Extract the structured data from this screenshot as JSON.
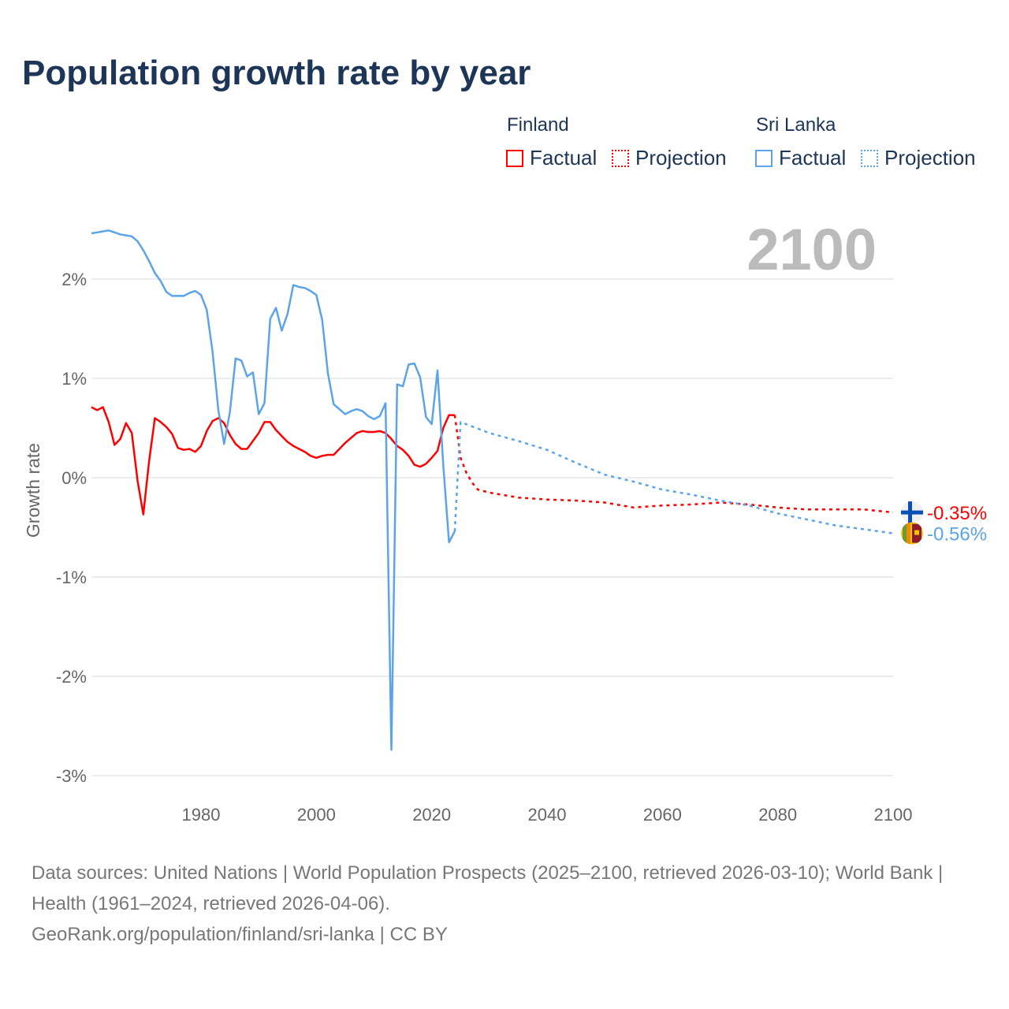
{
  "title": "Population growth rate by year",
  "legend": {
    "groups": [
      {
        "name": "Finland",
        "color": "#ff0000",
        "factual": "Factual",
        "projection": "Projection"
      },
      {
        "name": "Sri Lanka",
        "color": "#5ba4ea",
        "factual": "Factual",
        "projection": "Projection"
      }
    ]
  },
  "current_year_label": "2100",
  "footer": {
    "sources": "Data sources: United Nations | World Population Prospects (2025–2100, retrieved 2026-03-10); World Bank | Health (1961–2024, retrieved 2026-04-06).",
    "credit": "GeoRank.org/population/finland/sri-lanka | CC BY"
  },
  "chart_data": {
    "type": "line",
    "title": "Population growth rate by year",
    "xlabel": "",
    "ylabel": "Growth rate",
    "xlim": [
      1961,
      2100
    ],
    "ylim": [
      -3.3,
      2.6
    ],
    "xticks": [
      1980,
      2000,
      2020,
      2040,
      2060,
      2080,
      2100
    ],
    "yticks": [
      2,
      1,
      0,
      -1,
      -2,
      -3
    ],
    "ytick_labels": [
      "2%",
      "1%",
      "0%",
      "-1%",
      "-2%",
      "-3%"
    ],
    "grid": true,
    "legend_position": "top-right",
    "series": [
      {
        "name": "Finland",
        "kind": "factual",
        "color": "#ff0000",
        "x": [
          1961,
          1962,
          1963,
          1964,
          1965,
          1966,
          1967,
          1968,
          1969,
          1970,
          1971,
          1972,
          1973,
          1974,
          1975,
          1976,
          1977,
          1978,
          1979,
          1980,
          1981,
          1982,
          1983,
          1984,
          1985,
          1986,
          1987,
          1988,
          1989,
          1990,
          1991,
          1992,
          1993,
          1994,
          1995,
          1996,
          1997,
          1998,
          1999,
          2000,
          2001,
          2002,
          2003,
          2004,
          2005,
          2006,
          2007,
          2008,
          2009,
          2010,
          2011,
          2012,
          2013,
          2014,
          2015,
          2016,
          2017,
          2018,
          2019,
          2020,
          2021,
          2022,
          2023,
          2024
        ],
        "y": [
          0.71,
          0.68,
          0.71,
          0.56,
          0.33,
          0.39,
          0.55,
          0.45,
          -0.03,
          -0.37,
          0.17,
          0.6,
          0.56,
          0.51,
          0.44,
          0.3,
          0.28,
          0.29,
          0.26,
          0.32,
          0.47,
          0.57,
          0.6,
          0.55,
          0.43,
          0.34,
          0.29,
          0.29,
          0.37,
          0.45,
          0.56,
          0.56,
          0.48,
          0.42,
          0.36,
          0.32,
          0.29,
          0.26,
          0.22,
          0.2,
          0.22,
          0.23,
          0.23,
          0.29,
          0.35,
          0.4,
          0.45,
          0.47,
          0.46,
          0.46,
          0.47,
          0.45,
          0.39,
          0.32,
          0.28,
          0.22,
          0.13,
          0.11,
          0.14,
          0.2,
          0.27,
          0.5,
          0.63,
          0.63
        ]
      },
      {
        "name": "Finland",
        "kind": "projection",
        "color": "#ff0000",
        "x": [
          2024,
          2025,
          2026,
          2027,
          2028,
          2030,
          2035,
          2040,
          2045,
          2050,
          2055,
          2060,
          2065,
          2070,
          2075,
          2080,
          2085,
          2090,
          2095,
          2100
        ],
        "y": [
          0.63,
          0.2,
          0.05,
          -0.05,
          -0.12,
          -0.15,
          -0.2,
          -0.22,
          -0.23,
          -0.25,
          -0.3,
          -0.28,
          -0.27,
          -0.25,
          -0.27,
          -0.3,
          -0.32,
          -0.32,
          -0.32,
          -0.35
        ]
      },
      {
        "name": "Sri Lanka",
        "kind": "factual",
        "color": "#5ba4ea",
        "x": [
          1961,
          1962,
          1963,
          1964,
          1965,
          1966,
          1967,
          1968,
          1969,
          1970,
          1971,
          1972,
          1973,
          1974,
          1975,
          1976,
          1977,
          1978,
          1979,
          1980,
          1981,
          1982,
          1983,
          1984,
          1985,
          1986,
          1987,
          1988,
          1989,
          1990,
          1991,
          1992,
          1993,
          1994,
          1995,
          1996,
          1997,
          1998,
          1999,
          2000,
          2001,
          2002,
          2003,
          2004,
          2005,
          2006,
          2007,
          2008,
          2009,
          2010,
          2011,
          2012,
          2013,
          2014,
          2015,
          2016,
          2017,
          2018,
          2019,
          2020,
          2021,
          2022,
          2023,
          2024
        ],
        "y": [
          2.46,
          2.47,
          2.48,
          2.49,
          2.47,
          2.45,
          2.44,
          2.43,
          2.38,
          2.29,
          2.18,
          2.06,
          1.98,
          1.87,
          1.83,
          1.83,
          1.83,
          1.86,
          1.88,
          1.84,
          1.69,
          1.27,
          0.68,
          0.34,
          0.66,
          1.2,
          1.18,
          1.02,
          1.06,
          0.64,
          0.75,
          1.6,
          1.71,
          1.48,
          1.65,
          1.94,
          1.92,
          1.91,
          1.88,
          1.84,
          1.59,
          1.05,
          0.74,
          0.69,
          0.64,
          0.67,
          0.69,
          0.67,
          0.62,
          0.59,
          0.62,
          0.75,
          -2.74,
          0.94,
          0.92,
          1.14,
          1.15,
          1.01,
          0.61,
          0.54,
          1.08,
          0.13,
          -0.65,
          -0.54
        ]
      },
      {
        "name": "Sri Lanka",
        "kind": "projection",
        "color": "#5ba4ea",
        "x": [
          2024,
          2025,
          2030,
          2035,
          2040,
          2045,
          2050,
          2055,
          2060,
          2065,
          2070,
          2075,
          2080,
          2085,
          2090,
          2095,
          2100
        ],
        "y": [
          -0.54,
          0.56,
          0.45,
          0.37,
          0.28,
          0.15,
          0.03,
          -0.04,
          -0.12,
          -0.17,
          -0.23,
          -0.28,
          -0.36,
          -0.42,
          -0.48,
          -0.52,
          -0.56
        ]
      }
    ],
    "end_labels": [
      {
        "country": "Finland",
        "text": "-0.35%",
        "color": "#ff0000",
        "value": -0.35
      },
      {
        "country": "Sri Lanka",
        "text": "-0.56%",
        "color": "#5ba4ea",
        "value": -0.56
      }
    ]
  }
}
